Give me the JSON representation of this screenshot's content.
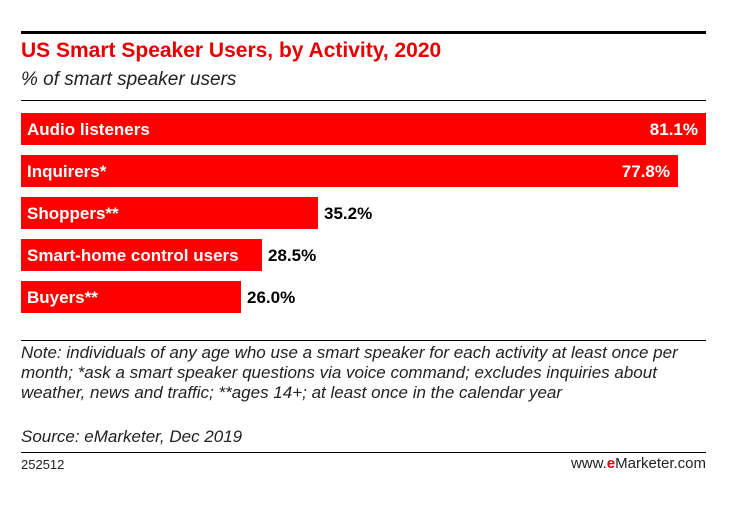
{
  "header": {
    "title": "US Smart Speaker Users, by Activity, 2020",
    "subtitle": "% of smart speaker users"
  },
  "chart_data": {
    "type": "bar",
    "orientation": "horizontal",
    "categories": [
      "Audio listeners",
      "Inquirers*",
      "Shoppers**",
      "Smart-home control users",
      "Buyers**"
    ],
    "values": [
      81.1,
      77.8,
      35.2,
      28.5,
      26.0
    ],
    "value_labels": [
      "81.1%",
      "77.8%",
      "35.2%",
      "28.5%",
      "26.0%"
    ],
    "xlim": [
      0,
      81.1
    ],
    "bar_color": "#ff0000",
    "grid": false,
    "legend": "none"
  },
  "footer": {
    "note": "Note: individuals of any age who use a smart speaker for each activity at least once per month; *ask a smart speaker questions via voice command; excludes inquiries about weather, news and traffic; **ages 14+; at least once in the calendar year",
    "source": "Source: eMarketer, Dec 2019",
    "chart_id": "252512",
    "brand_prefix": "www.",
    "brand_e": "e",
    "brand_rest": "Marketer.com"
  }
}
